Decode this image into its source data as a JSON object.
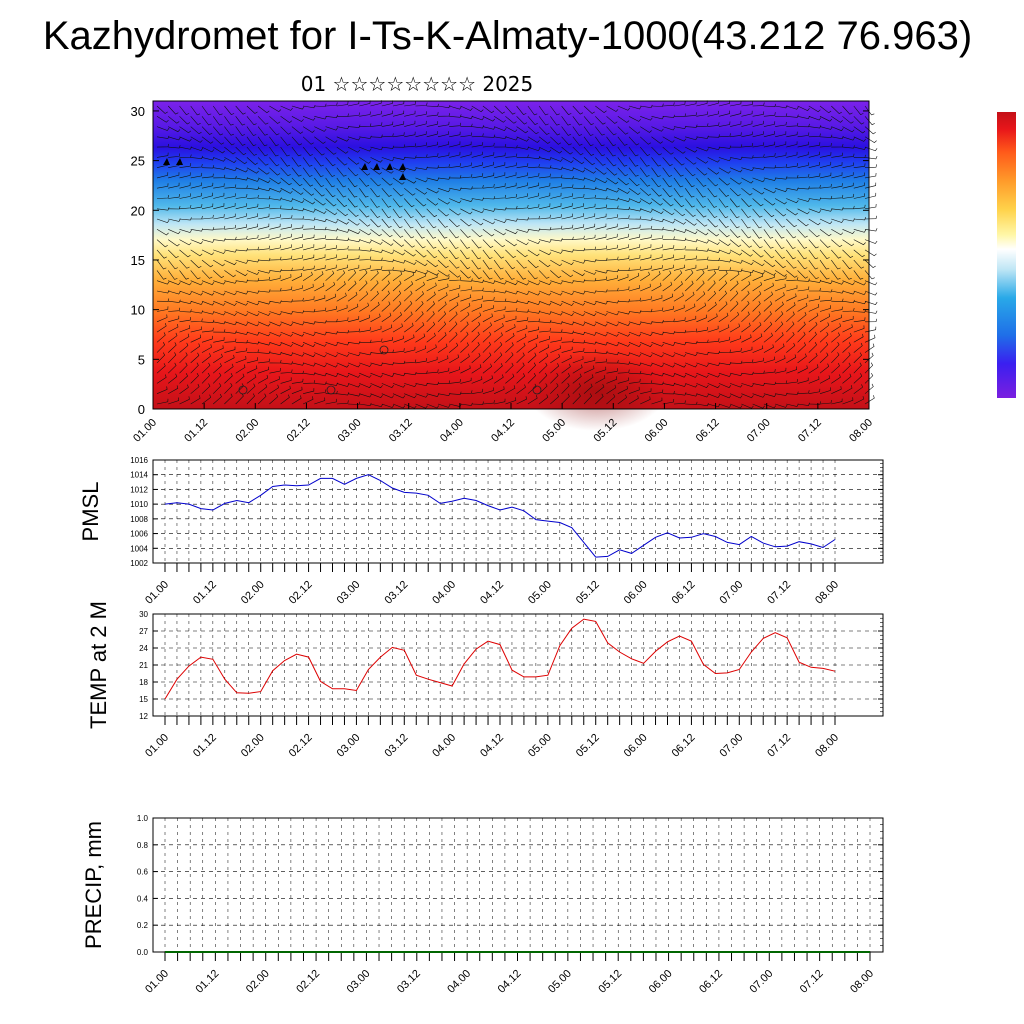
{
  "title": "Kazhydromet for I-Ts-K-Almaty-1000(43.212 76.963)",
  "subtitle": "01 ☆☆☆☆☆☆☆☆ 2025",
  "chart_data": [
    {
      "type": "heatmap",
      "name": "vertical-section",
      "x_tick_labels": [
        "01.00",
        "01.12",
        "02.00",
        "02.12",
        "03.00",
        "03.12",
        "04.00",
        "04.12",
        "05.00",
        "05.12",
        "06.00",
        "06.12",
        "07.00",
        "07.12",
        "08.00"
      ],
      "y_tick_labels": [
        "0",
        "5",
        "10",
        "15",
        "20",
        "25",
        "30"
      ],
      "ylim": [
        0,
        31
      ],
      "colorbar_colors": [
        "#7b1fe0",
        "#3a1ff0",
        "#1f6fe8",
        "#29a9e8",
        "#8fd3f2",
        "#fff7a8",
        "#ffd24a",
        "#ff9a2a",
        "#ff5a1a",
        "#e8161a",
        "#c41018"
      ]
    },
    {
      "type": "line",
      "name": "PMSL",
      "ylabel": "PMSL",
      "ylim": [
        1002,
        1016
      ],
      "y_tick_labels": [
        "1002",
        "1004",
        "1006",
        "1008",
        "1010",
        "1012",
        "1014",
        "1016"
      ],
      "x_tick_labels": [
        "01.00",
        "01.12",
        "02.00",
        "02.12",
        "03.00",
        "03.12",
        "04.00",
        "04.12",
        "05.00",
        "05.12",
        "06.00",
        "06.12",
        "07.00",
        "07.12",
        "08.00"
      ],
      "color": "#0000cc",
      "x": [
        0,
        3,
        6,
        9,
        12,
        15,
        18,
        21,
        24,
        27,
        30,
        33,
        36,
        39,
        42,
        45,
        48,
        51,
        54,
        57,
        60,
        63,
        66,
        69,
        72,
        75,
        78,
        81,
        84,
        87,
        90,
        93,
        96,
        99,
        102,
        105,
        108,
        111,
        114,
        117,
        120,
        123,
        126,
        129,
        132,
        135,
        138,
        141,
        144,
        147,
        150,
        153,
        156,
        159,
        162,
        165,
        168
      ],
      "values": [
        1010.0,
        1010.2,
        1010.0,
        1009.4,
        1009.2,
        1010.1,
        1010.5,
        1010.2,
        1011.2,
        1012.4,
        1012.6,
        1012.5,
        1012.6,
        1013.5,
        1013.5,
        1012.7,
        1013.5,
        1014.0,
        1013.2,
        1012.2,
        1011.6,
        1011.5,
        1011.2,
        1010.1,
        1010.4,
        1010.8,
        1010.5,
        1009.8,
        1009.2,
        1009.6,
        1009.1,
        1007.9,
        1007.7,
        1007.5,
        1006.8,
        1004.8,
        1002.8,
        1002.9,
        1003.8,
        1003.3,
        1004.4,
        1005.5,
        1006.1,
        1005.4,
        1005.5,
        1006.0,
        1005.6,
        1004.8,
        1004.5,
        1005.6,
        1004.7,
        1004.2,
        1004.3,
        1004.9,
        1004.6,
        1004.1,
        1005.2
      ]
    },
    {
      "type": "line",
      "name": "TEMP at 2 M",
      "ylabel": "TEMP at 2 M",
      "ylim": [
        12,
        30
      ],
      "y_tick_labels": [
        "12",
        "15",
        "18",
        "21",
        "24",
        "27",
        "30"
      ],
      "x_tick_labels": [
        "01.00",
        "01.12",
        "02.00",
        "02.12",
        "03.00",
        "03.12",
        "04.00",
        "04.12",
        "05.00",
        "05.12",
        "06.00",
        "06.12",
        "07.00",
        "07.12",
        "08.00"
      ],
      "color": "#dd0000",
      "x": [
        0,
        3,
        6,
        9,
        12,
        15,
        18,
        21,
        24,
        27,
        30,
        33,
        36,
        39,
        42,
        45,
        48,
        51,
        54,
        57,
        60,
        63,
        66,
        69,
        72,
        75,
        78,
        81,
        84,
        87,
        90,
        93,
        96,
        99,
        102,
        105,
        108,
        111,
        114,
        117,
        120,
        123,
        126,
        129,
        132,
        135,
        138,
        141,
        144,
        147,
        150,
        153,
        156,
        159,
        162,
        165,
        168
      ],
      "values": [
        15.0,
        18.5,
        20.8,
        22.4,
        22.0,
        18.5,
        16.1,
        16.0,
        16.3,
        20.0,
        21.8,
        22.9,
        22.4,
        18.1,
        16.8,
        16.8,
        16.5,
        20.2,
        22.4,
        24.1,
        23.6,
        19.2,
        18.5,
        17.9,
        17.3,
        21.2,
        23.8,
        25.2,
        24.6,
        20.1,
        18.9,
        18.9,
        19.2,
        24.4,
        27.5,
        29.1,
        28.7,
        24.9,
        23.3,
        22.1,
        21.3,
        23.4,
        25.1,
        26.1,
        25.2,
        21.1,
        19.5,
        19.6,
        20.2,
        23.3,
        25.7,
        26.7,
        25.8,
        21.5,
        20.6,
        20.4,
        19.9
      ]
    },
    {
      "type": "line",
      "name": "PRECIP, mm",
      "ylabel": "PRECIP, mm",
      "ylim": [
        0,
        1
      ],
      "y_tick_labels": [
        "0.0",
        "0.2",
        "0.4",
        "0.6",
        "0.8",
        "1.0"
      ],
      "x_tick_labels": [
        "01.00",
        "01.12",
        "02.00",
        "02.12",
        "03.00",
        "03.12",
        "04.00",
        "04.12",
        "05.00",
        "05.12",
        "06.00",
        "06.12",
        "07.00",
        "07.12",
        "08.00"
      ],
      "color": "#006600",
      "x": [
        0,
        168
      ],
      "values": [
        0,
        0
      ]
    }
  ]
}
